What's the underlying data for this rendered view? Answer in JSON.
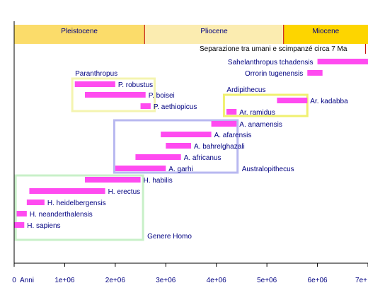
{
  "chart_data": {
    "type": "bar",
    "x_unit": "years ago",
    "xlim": [
      0,
      7000000
    ],
    "x_ticks": [
      {
        "value": 0,
        "label": "0"
      },
      {
        "value": 1000000,
        "label": "1e+06"
      },
      {
        "value": 2000000,
        "label": "2e+06"
      },
      {
        "value": 3000000,
        "label": "3e+06"
      },
      {
        "value": 4000000,
        "label": "4e+06"
      },
      {
        "value": 5000000,
        "label": "5e+06"
      },
      {
        "value": 6000000,
        "label": "6e+06"
      },
      {
        "value": 7000000,
        "label": "7e+"
      }
    ],
    "axis_unit_label": "Anni",
    "epochs": [
      {
        "name": "Pleistocene",
        "start": 0,
        "end": 2580000,
        "color": "#fbdc6a"
      },
      {
        "name": "Pliocene",
        "start": 2580000,
        "end": 5330000,
        "color": "#fbecb0"
      },
      {
        "name": "Miocene",
        "start": 5330000,
        "end": 7000000,
        "color": "#fdd500"
      }
    ],
    "split_marker": {
      "label": "Separazione tra umani e scimpanzé circa 7 Ma",
      "value": 6950000
    },
    "species": [
      {
        "name": "Sahelanthropus tchadensis",
        "start": 6000000,
        "end": 7000000
      },
      {
        "name": "Orrorin tugenensis",
        "start": 5800000,
        "end": 6100000
      },
      {
        "name": "P. robustus",
        "start": 1200000,
        "end": 2000000
      },
      {
        "name": "P. boisei",
        "start": 1400000,
        "end": 2600000
      },
      {
        "name": "P. aethiopicus",
        "start": 2500000,
        "end": 2700000
      },
      {
        "name": "Ar. kadabba",
        "start": 5200000,
        "end": 5800000
      },
      {
        "name": "Ar. ramidus",
        "start": 4200000,
        "end": 4400000
      },
      {
        "name": "A. anamensis",
        "start": 3900000,
        "end": 4400000
      },
      {
        "name": "A. afarensis",
        "start": 2900000,
        "end": 3900000
      },
      {
        "name": "A. bahrelghazali",
        "start": 3000000,
        "end": 3500000
      },
      {
        "name": "A. africanus",
        "start": 2400000,
        "end": 3300000
      },
      {
        "name": "A. garhi",
        "start": 2000000,
        "end": 3000000
      },
      {
        "name": "H. habilis",
        "start": 1400000,
        "end": 2500000
      },
      {
        "name": "H. erectus",
        "start": 300000,
        "end": 1800000
      },
      {
        "name": "H. heidelbergensis",
        "start": 250000,
        "end": 600000
      },
      {
        "name": "H. neanderthalensis",
        "start": 50000,
        "end": 250000
      },
      {
        "name": "H. sapiens",
        "start": 0,
        "end": 200000
      }
    ],
    "groups": [
      {
        "name": "Paranthropus",
        "start": 1150000,
        "end": 2780000,
        "color": "#f4f4b0"
      },
      {
        "name": "Ardipithecus",
        "start": 4150000,
        "end": 5800000,
        "color": "#f0f070"
      },
      {
        "name": "Australopithecus",
        "start": 1980000,
        "end": 4420000,
        "color": "#b8b8f0"
      },
      {
        "name": "Genere Homo",
        "start": 30000,
        "end": 2550000,
        "color": "#c8f0c8"
      }
    ],
    "bar_color": "#ff4bf0"
  }
}
